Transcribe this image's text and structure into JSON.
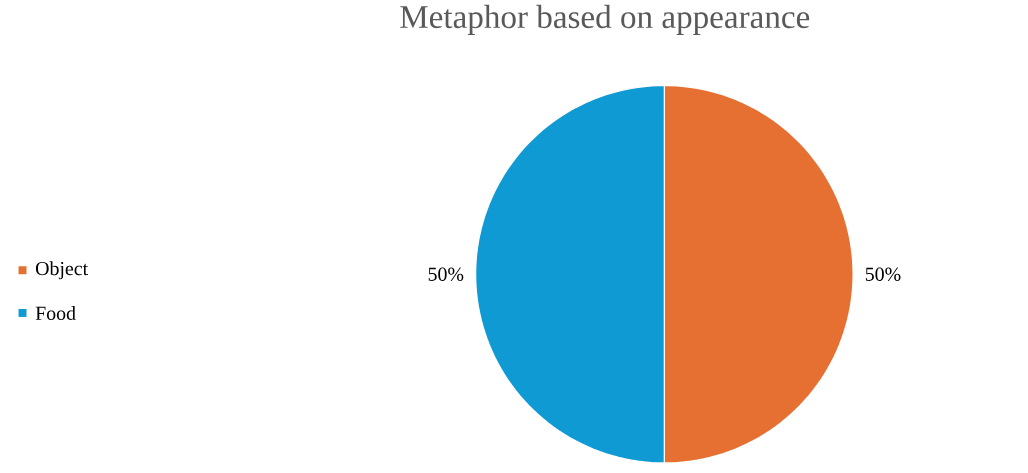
{
  "chart_data": {
    "type": "pie",
    "title": "Metaphor based on appearance",
    "categories": [
      "Object",
      "Food"
    ],
    "values": [
      50,
      50
    ],
    "colors": [
      "#e57032",
      "#0f9ad3"
    ],
    "value_labels": [
      "50%",
      "50%"
    ],
    "legend": "left"
  }
}
